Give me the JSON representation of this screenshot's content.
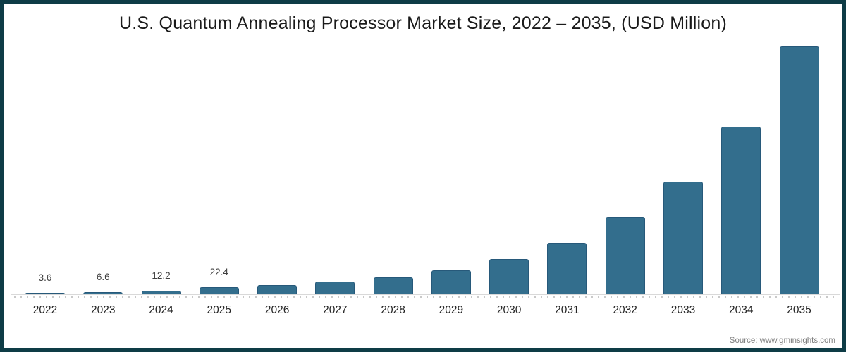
{
  "title": "U.S. Quantum Annealing Processor Market Size, 2022 – 2035, (USD Million)",
  "source_text": "Source: www.gminsights.com",
  "colors": {
    "frame_border": "#0E3C46",
    "bar": "#336E8D",
    "bar_border": "#27597A",
    "axis_line": "#D9D9D9",
    "tick_dots": "#C9C9C9",
    "title_text": "#1A1A1A",
    "value_label_text": "#404040",
    "year_label_text": "#262626",
    "source_text_color": "#7F7F7F"
  },
  "chart_data": {
    "type": "bar",
    "title": "U.S. Quantum Annealing Processor Market Size, 2022 – 2035, (USD Million)",
    "xlabel": "",
    "ylabel": "USD Million",
    "categories": [
      "2022",
      "2023",
      "2024",
      "2025",
      "2026",
      "2027",
      "2028",
      "2029",
      "2030",
      "2031",
      "2032",
      "2033",
      "2034",
      "2035"
    ],
    "values": [
      3.6,
      6.6,
      12.2,
      22.4,
      30,
      41,
      55,
      80,
      116,
      171,
      256,
      373,
      554,
      820
    ],
    "data_labels_shown": [
      "3.6",
      "6.6",
      "12.2",
      "22.4",
      "",
      "",
      "",
      "",
      "",
      "",
      "",
      "",
      "",
      ""
    ],
    "ylim": [
      0,
      860
    ],
    "grid": false,
    "legend": "none",
    "y_axis_visible": false,
    "note_values_after_2025_estimated_from_bar_heights": true
  }
}
